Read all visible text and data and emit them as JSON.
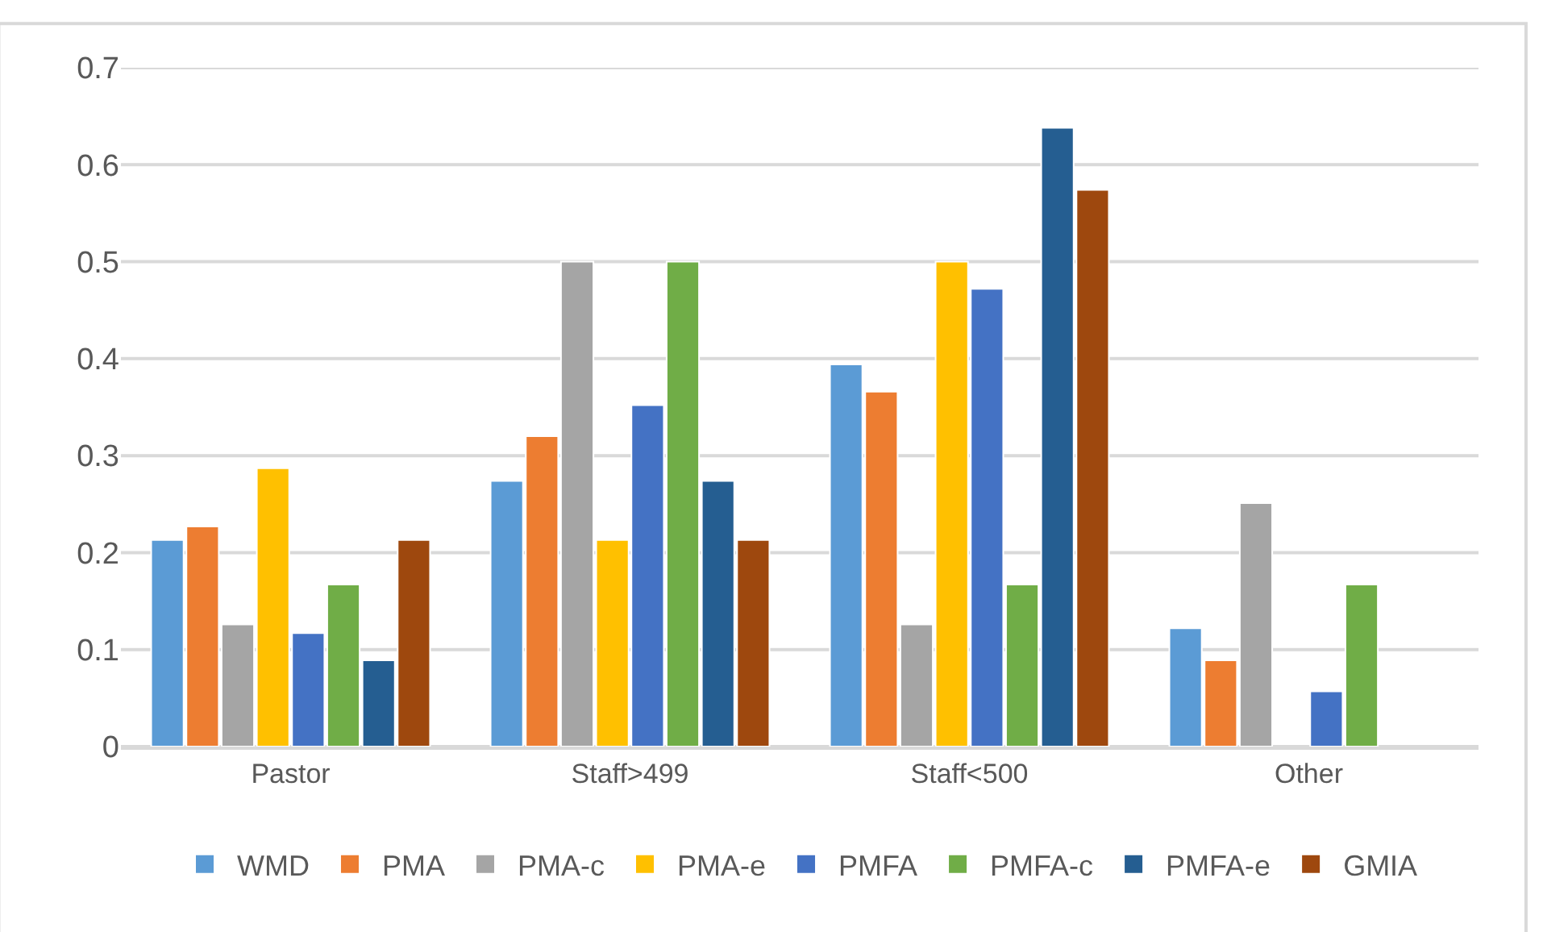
{
  "chart_data": {
    "type": "bar",
    "categories": [
      "Pastor",
      "Staff>499",
      "Staff<500",
      "Other"
    ],
    "series": [
      {
        "name": "WMD",
        "color": "#5b9bd5",
        "values": [
          0.213,
          0.274,
          0.394,
          0.122
        ]
      },
      {
        "name": "PMA",
        "color": "#ed7d31",
        "values": [
          0.227,
          0.32,
          0.366,
          0.089
        ]
      },
      {
        "name": "PMA-c",
        "color": "#a5a5a5",
        "values": [
          0.126,
          0.5,
          0.126,
          0.251
        ]
      },
      {
        "name": "PMA-e",
        "color": "#ffc000",
        "values": [
          0.287,
          0.213,
          0.5,
          null
        ]
      },
      {
        "name": "PMFA",
        "color": "#4472c4",
        "values": [
          0.117,
          0.352,
          0.472,
          0.057
        ]
      },
      {
        "name": "PMFA-c",
        "color": "#70ad47",
        "values": [
          0.167,
          0.5,
          0.167,
          0.167
        ]
      },
      {
        "name": "PMFA-e",
        "color": "#255e91",
        "values": [
          0.089,
          0.274,
          0.638,
          null
        ]
      },
      {
        "name": "GMIA",
        "color": "#9e480e",
        "values": [
          0.213,
          0.213,
          0.574,
          null
        ]
      }
    ],
    "ylim": [
      0,
      0.7
    ],
    "yticks": [
      0,
      0.1,
      0.2,
      0.3,
      0.4,
      0.5,
      0.6,
      0.7
    ],
    "grid": "y",
    "legend": "bottom"
  }
}
